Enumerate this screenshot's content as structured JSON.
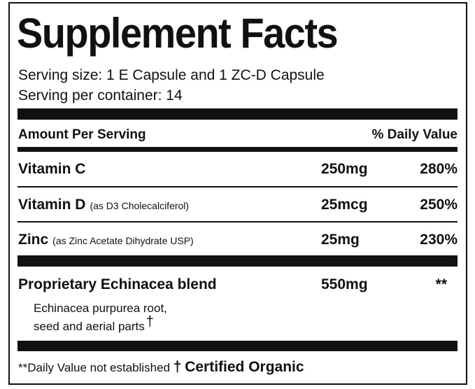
{
  "title": "Supplement Facts",
  "serving": [
    "Serving size: 1 E Capsule and 1 ZC-D Capsule",
    "Serving per container: 14"
  ],
  "header": {
    "amount": "Amount Per Serving",
    "daily_value": "% Daily Value"
  },
  "rows": [
    {
      "name": "Vitamin C",
      "amount": "250mg",
      "daily_value": "280%"
    },
    {
      "name": "Vitamin D",
      "note": "(as D3 Cholecalciferol)",
      "amount": "25mcg",
      "daily_value": "250%"
    },
    {
      "name": "Zinc",
      "note": "(as Zinc Acetate Dihydrate USP)",
      "amount": "25mg",
      "daily_value": "230%"
    }
  ],
  "blend": {
    "name": "Proprietary Echinacea blend",
    "amount": "550mg",
    "daily_value": "**",
    "description": [
      "Echinacea purpurea root,",
      "seed and aerial parts"
    ],
    "mark": "†"
  },
  "footer": {
    "note": "**Daily Value not established",
    "mark": "†",
    "organic": "Certified Organic"
  }
}
